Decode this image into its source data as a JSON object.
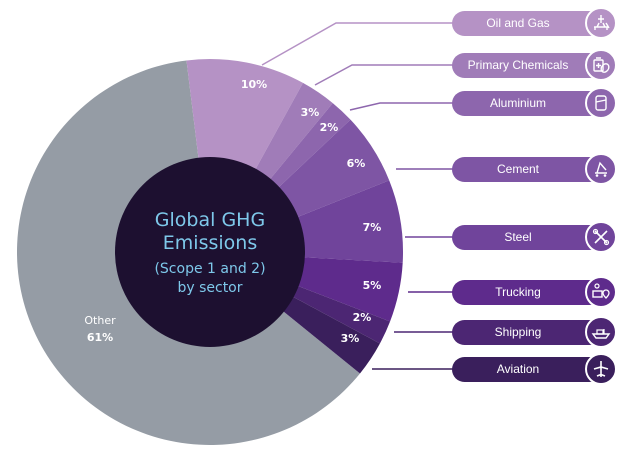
{
  "center_label": {
    "line1": "Global GHG",
    "line2": "Emissions",
    "line3": "(Scope 1 and 2)",
    "line4": "by sector"
  },
  "other": {
    "label": "Other",
    "value": "61%"
  },
  "sectors": [
    {
      "name": "Oil and Gas",
      "value": "10%",
      "color": "#b592c5",
      "icon": "oil-rig-icon"
    },
    {
      "name": "Primary Chemicals",
      "value": "3%",
      "color": "#a07cb8",
      "icon": "chemicals-icon"
    },
    {
      "name": "Aluminium",
      "value": "2%",
      "color": "#8d66ad",
      "icon": "can-icon"
    },
    {
      "name": "Cement",
      "value": "6%",
      "color": "#7e55a4",
      "icon": "cement-mixer-icon"
    },
    {
      "name": "Steel",
      "value": "7%",
      "color": "#70449b",
      "icon": "tools-icon"
    },
    {
      "name": "Trucking",
      "value": "5%",
      "color": "#5e2b8c",
      "icon": "truck-location-icon"
    },
    {
      "name": "Shipping",
      "value": "2%",
      "color": "#4c2673",
      "icon": "ship-icon"
    },
    {
      "name": "Aviation",
      "value": "3%",
      "color": "#3a1f5c",
      "icon": "airplane-icon"
    }
  ],
  "colors": {
    "other": "#959ca5",
    "center": "#1d1030",
    "center_text": "#7ec8ea",
    "leader": "#9a70bf"
  },
  "chart_data": {
    "type": "pie",
    "title": "Global GHG Emissions (Scope 1 and 2) by sector",
    "categories": [
      "Oil and Gas",
      "Primary Chemicals",
      "Aluminium",
      "Cement",
      "Steel",
      "Trucking",
      "Shipping",
      "Aviation",
      "Other"
    ],
    "values": [
      10,
      3,
      2,
      6,
      7,
      5,
      2,
      3,
      61
    ],
    "unit": "%",
    "donut": true,
    "legend_position": "right"
  }
}
